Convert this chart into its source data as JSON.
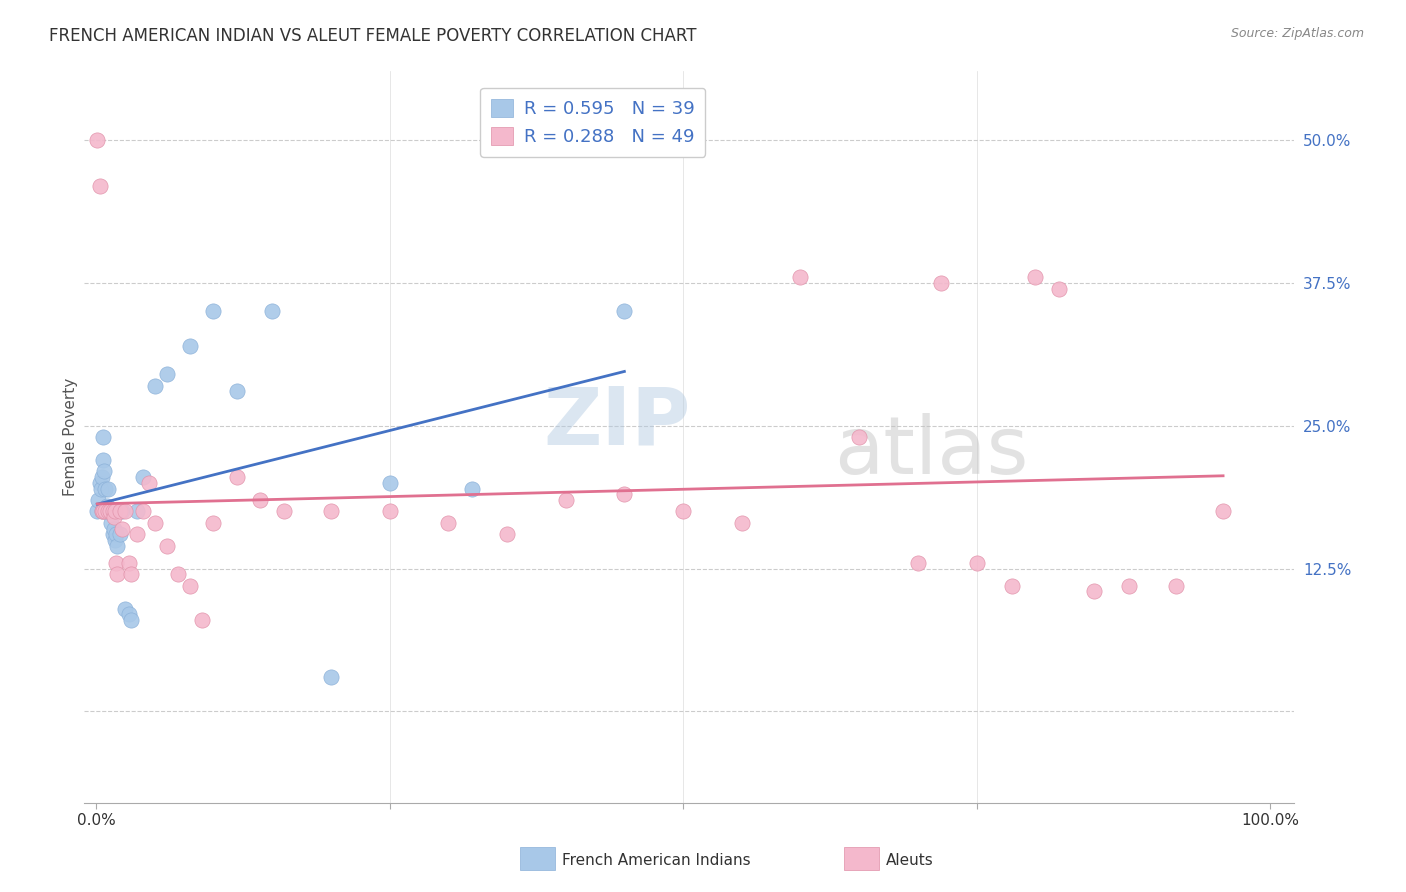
{
  "title": "FRENCH AMERICAN INDIAN VS ALEUT FEMALE POVERTY CORRELATION CHART",
  "source": "Source: ZipAtlas.com",
  "ylabel": "Female Poverty",
  "y_ticks": [
    0.0,
    0.125,
    0.25,
    0.375,
    0.5
  ],
  "y_tick_labels": [
    "",
    "12.5%",
    "25.0%",
    "37.5%",
    "50.0%"
  ],
  "x_ticks": [
    0.0,
    0.25,
    0.5,
    0.75,
    1.0
  ],
  "x_tick_labels_left": "0.0%",
  "x_tick_labels_right": "100.0%",
  "watermark_zip": "ZIP",
  "watermark_atlas": "atlas",
  "blue_scatter_color": "#a8c8e8",
  "pink_scatter_color": "#f4b8cc",
  "blue_line_color": "#4472c4",
  "pink_line_color": "#e07090",
  "tick_color": "#4472c4",
  "legend_r1": "R = 0.595",
  "legend_n1": "N = 39",
  "legend_r2": "R = 0.288",
  "legend_n2": "N = 49",
  "fai_x": [
    0.001,
    0.002,
    0.003,
    0.004,
    0.005,
    0.005,
    0.006,
    0.006,
    0.007,
    0.008,
    0.008,
    0.009,
    0.01,
    0.01,
    0.011,
    0.012,
    0.013,
    0.014,
    0.015,
    0.016,
    0.017,
    0.018,
    0.02,
    0.022,
    0.025,
    0.028,
    0.03,
    0.035,
    0.04,
    0.05,
    0.06,
    0.08,
    0.1,
    0.12,
    0.15,
    0.2,
    0.25,
    0.32,
    0.45
  ],
  "fai_y": [
    0.175,
    0.185,
    0.2,
    0.195,
    0.205,
    0.175,
    0.22,
    0.24,
    0.21,
    0.175,
    0.195,
    0.18,
    0.175,
    0.195,
    0.175,
    0.175,
    0.165,
    0.155,
    0.16,
    0.15,
    0.155,
    0.145,
    0.155,
    0.175,
    0.09,
    0.085,
    0.08,
    0.175,
    0.205,
    0.285,
    0.295,
    0.32,
    0.35,
    0.28,
    0.35,
    0.03,
    0.2,
    0.195,
    0.35
  ],
  "aleut_x": [
    0.001,
    0.003,
    0.005,
    0.006,
    0.008,
    0.01,
    0.012,
    0.014,
    0.015,
    0.016,
    0.017,
    0.018,
    0.02,
    0.022,
    0.025,
    0.028,
    0.03,
    0.035,
    0.04,
    0.045,
    0.05,
    0.06,
    0.07,
    0.08,
    0.09,
    0.1,
    0.12,
    0.14,
    0.16,
    0.2,
    0.25,
    0.3,
    0.35,
    0.4,
    0.45,
    0.5,
    0.55,
    0.6,
    0.65,
    0.7,
    0.72,
    0.75,
    0.78,
    0.8,
    0.82,
    0.85,
    0.88,
    0.92,
    0.96
  ],
  "aleut_y": [
    0.5,
    0.46,
    0.175,
    0.175,
    0.175,
    0.175,
    0.175,
    0.175,
    0.17,
    0.175,
    0.13,
    0.12,
    0.175,
    0.16,
    0.175,
    0.13,
    0.12,
    0.155,
    0.175,
    0.2,
    0.165,
    0.145,
    0.12,
    0.11,
    0.08,
    0.165,
    0.205,
    0.185,
    0.175,
    0.175,
    0.175,
    0.165,
    0.155,
    0.185,
    0.19,
    0.175,
    0.165,
    0.38,
    0.24,
    0.13,
    0.375,
    0.13,
    0.11,
    0.38,
    0.37,
    0.105,
    0.11,
    0.11,
    0.175
  ]
}
